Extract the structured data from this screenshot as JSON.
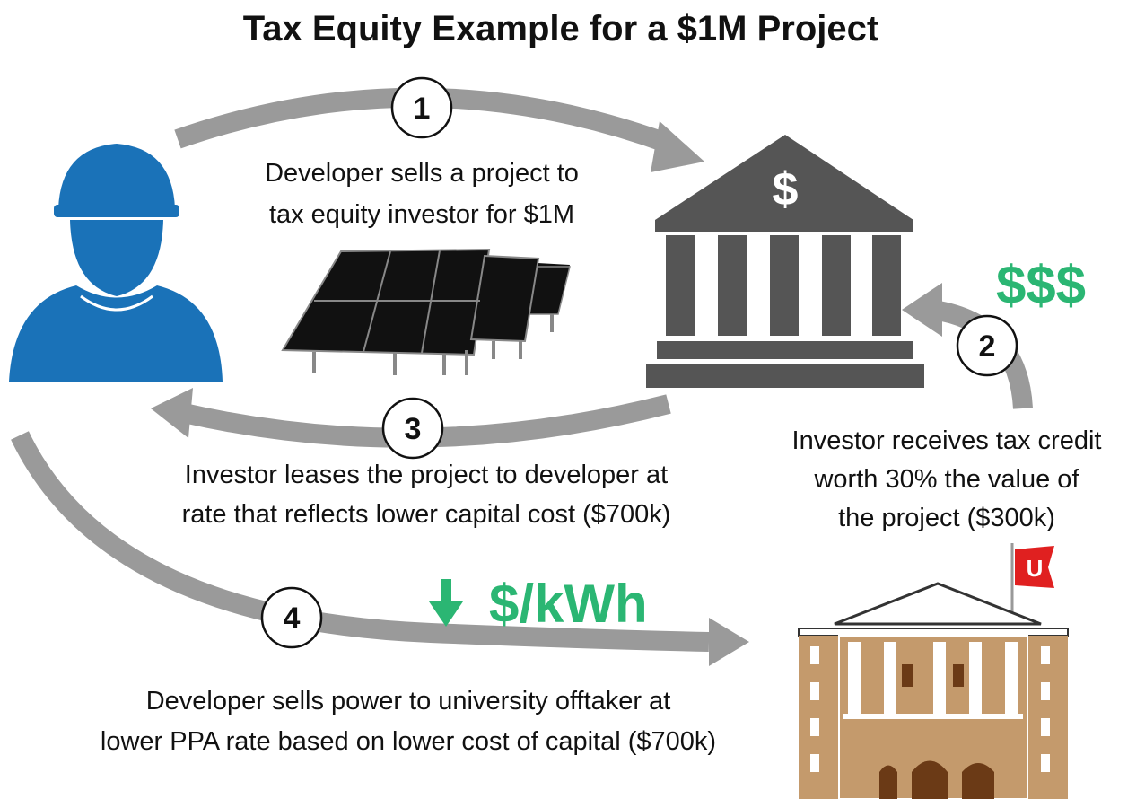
{
  "title": "Tax Equity Example for a $1M Project",
  "steps": [
    {
      "number": "1",
      "lines": [
        "Developer sells a project to",
        "tax equity investor for $1M"
      ]
    },
    {
      "number": "2",
      "lines": [
        "Investor receives tax credit",
        "worth 30% the value of",
        "the project ($300k)"
      ]
    },
    {
      "number": "3",
      "lines": [
        "Investor leases the project to developer at",
        "rate that reflects lower capital cost ($700k)"
      ]
    },
    {
      "number": "4",
      "lines": [
        "Developer sells power to university offtaker at",
        "lower PPA rate based on lower cost of capital ($700k)"
      ]
    }
  ],
  "bank_symbol": "$",
  "money_label": "$$$",
  "rate_label": "$/kWh",
  "flag_letter": "U"
}
